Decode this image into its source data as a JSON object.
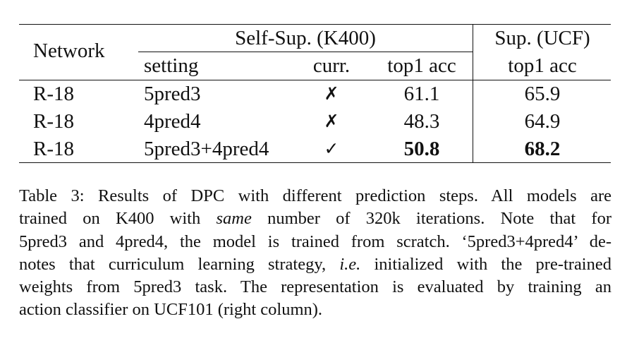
{
  "table": {
    "headers": {
      "network": "Network",
      "self_sup_group": "Self-Sup. (K400)",
      "sup_group": "Sup. (UCF)",
      "setting": "setting",
      "curr": "curr.",
      "top1_self": "top1 acc",
      "top1_sup": "top1 acc"
    },
    "rows": [
      {
        "network": "R-18",
        "setting": "5pred3",
        "curr": "✗",
        "self_acc": "61.1",
        "sup_acc": "65.9"
      },
      {
        "network": "R-18",
        "setting": "4pred4",
        "curr": "✗",
        "self_acc": "48.3",
        "sup_acc": "64.9"
      },
      {
        "network": "R-18",
        "setting": "5pred3+4pred4",
        "curr": "✓",
        "self_acc": "50.8",
        "sup_acc": "68.2"
      }
    ]
  },
  "caption": {
    "l1": "Table 3: Results of DPC with different prediction steps. All models are",
    "l2a": "trained on K400 with ",
    "l2b": "same",
    "l2c": " number of 320k iterations.  Note that for",
    "l3": "5pred3 and 4pred4, the model is trained from scratch. ‘5pred3+4pred4’ de-",
    "l4a": "notes that curriculum learning strategy, ",
    "l4b": "i.e.",
    "l4c": " initialized with the pre-trained",
    "l5": "weights from 5pred3 task. The representation is evaluated by training an",
    "l6": "action classifier on UCF101 (right column)."
  }
}
